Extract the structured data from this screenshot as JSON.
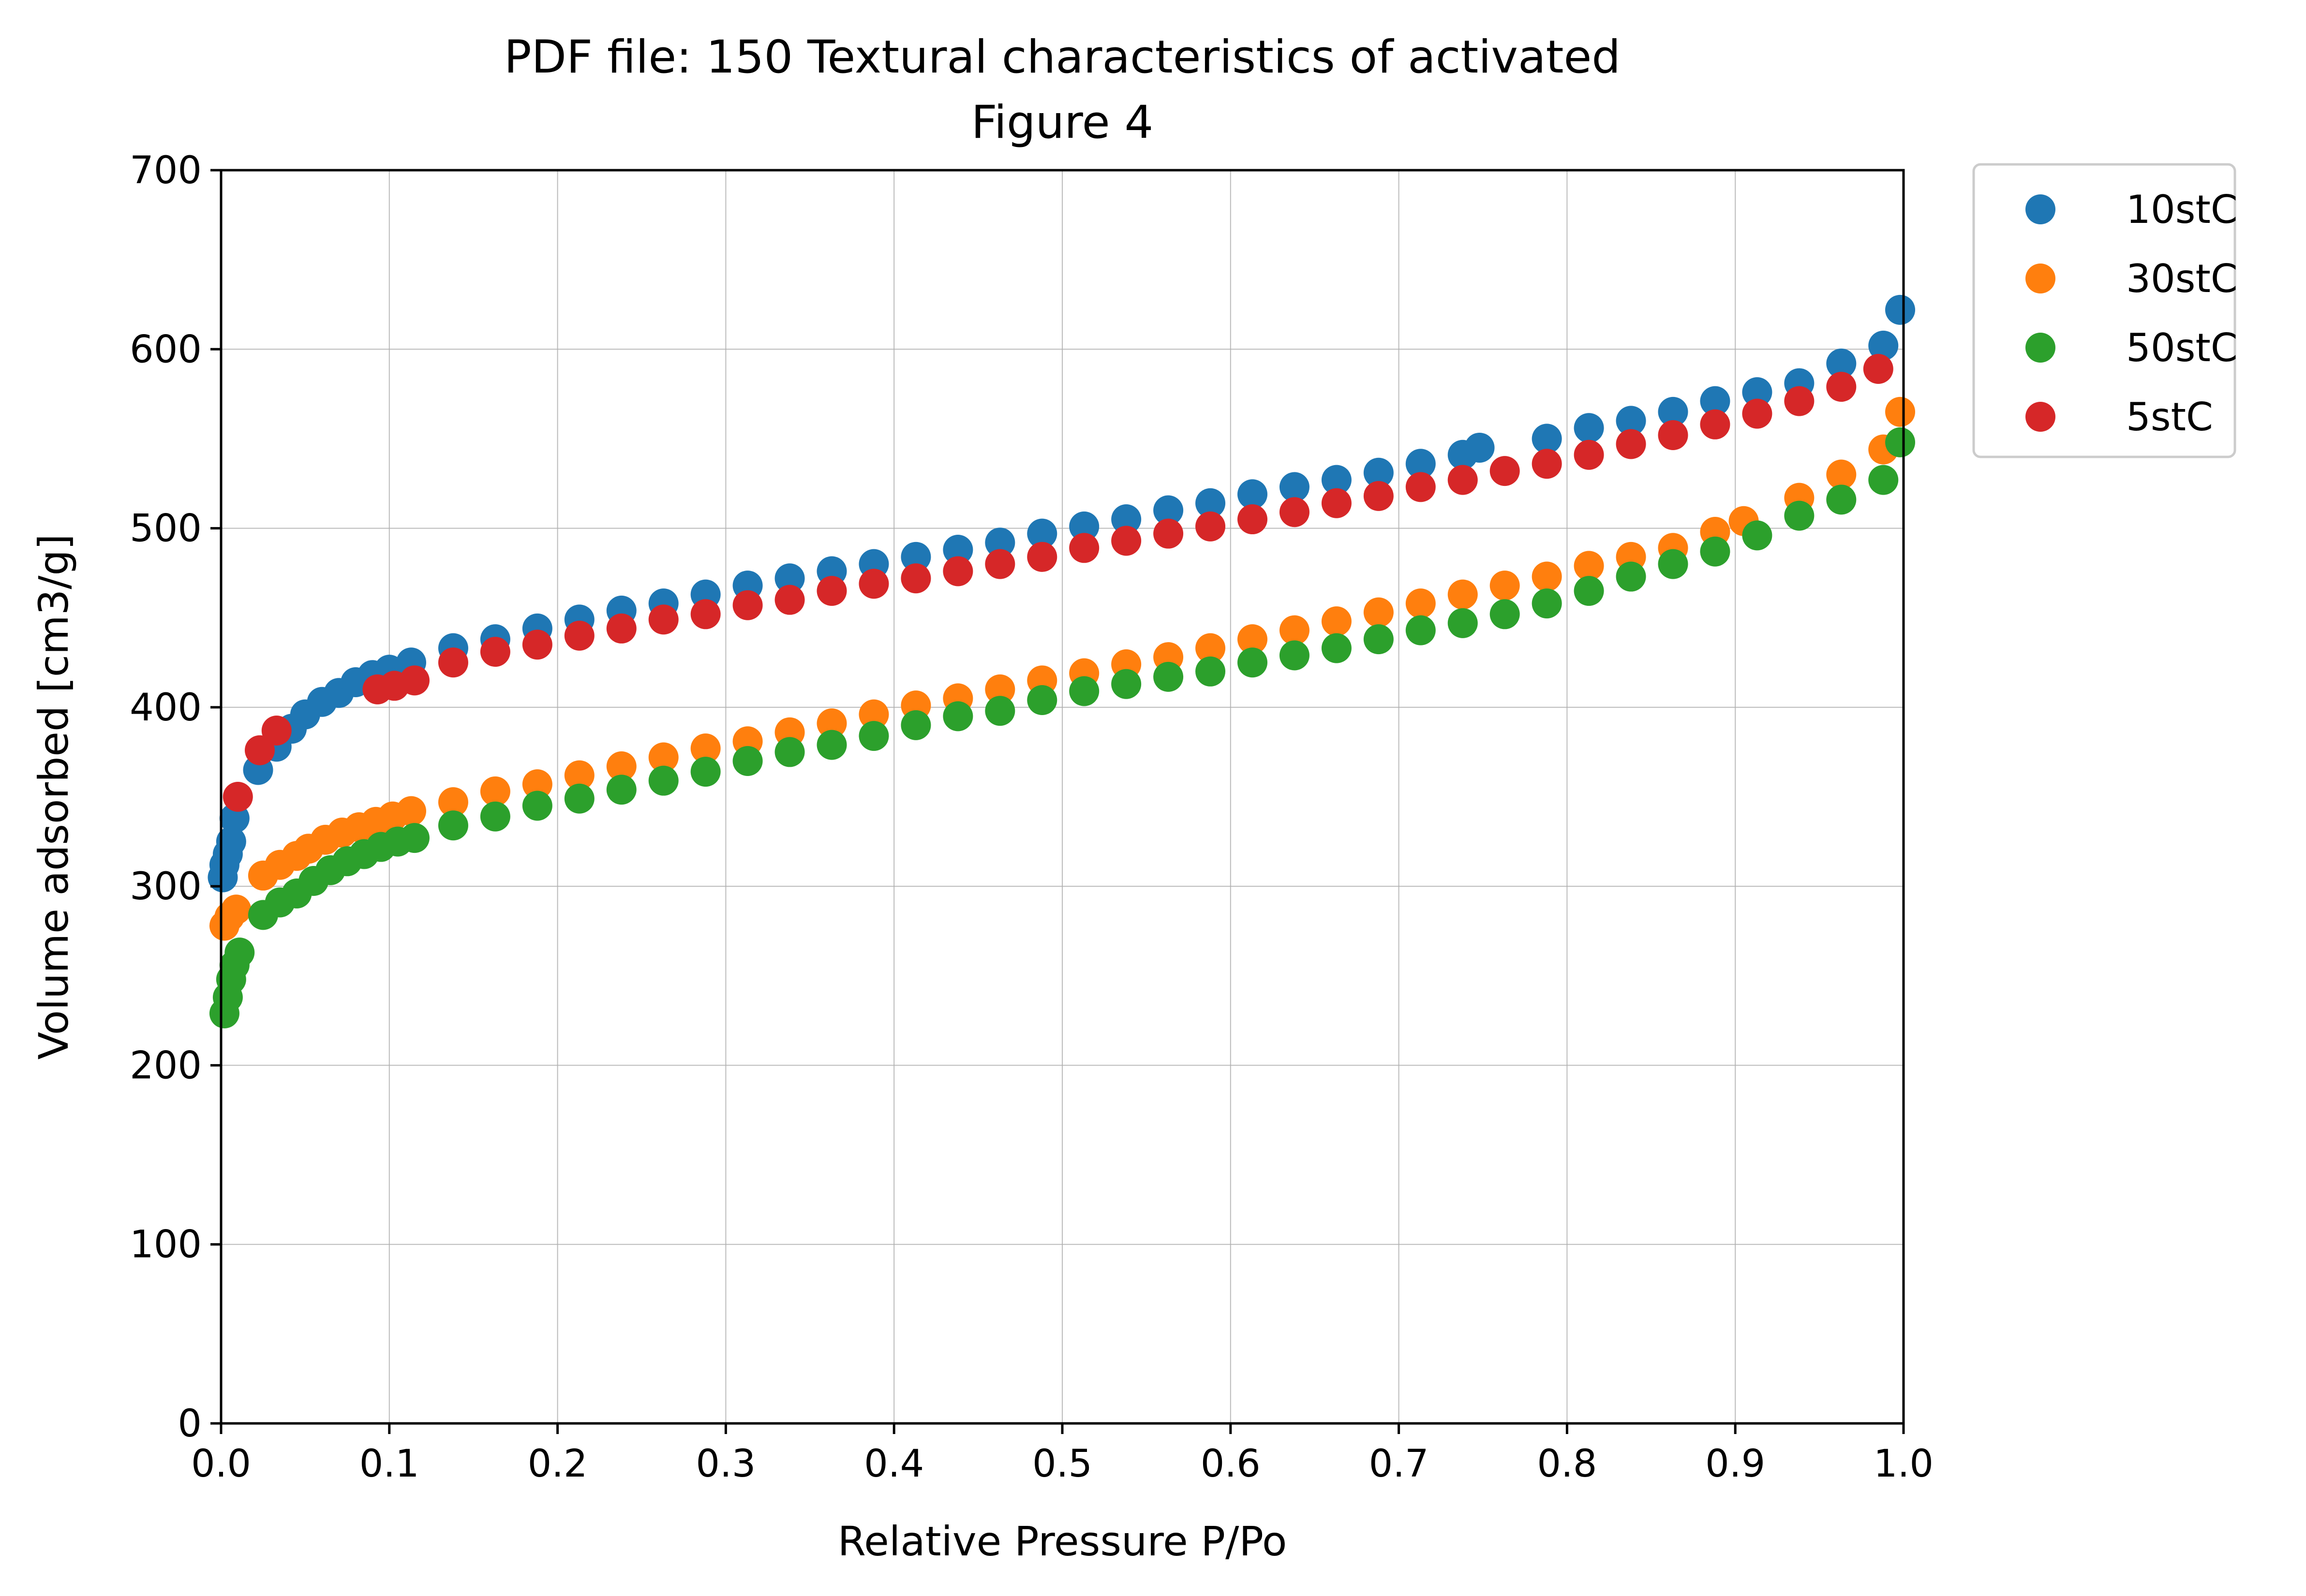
{
  "chart_data": {
    "type": "scatter",
    "title": "PDF file: 150 Textural characteristics of activated",
    "subtitle": "Figure 4",
    "xlabel": "Relative Pressure P/Po",
    "ylabel": "Volume adsorbed [cm3/g]",
    "xlim": [
      0.0,
      1.0
    ],
    "ylim": [
      0,
      700
    ],
    "xticks": [
      "0.0",
      "0.1",
      "0.2",
      "0.3",
      "0.4",
      "0.5",
      "0.6",
      "0.7",
      "0.8",
      "0.9",
      "1.0"
    ],
    "yticks": [
      "0",
      "100",
      "200",
      "300",
      "400",
      "500",
      "600",
      "700"
    ],
    "grid": true,
    "legend_position": "outside-top-right",
    "series": [
      {
        "name": "10stC",
        "color": "#1f77b4",
        "points": [
          [
            0.001,
            305
          ],
          [
            0.002,
            312
          ],
          [
            0.004,
            318
          ],
          [
            0.006,
            325
          ],
          [
            0.008,
            338
          ],
          [
            0.022,
            365
          ],
          [
            0.033,
            378
          ],
          [
            0.042,
            388
          ],
          [
            0.05,
            396
          ],
          [
            0.06,
            403
          ],
          [
            0.07,
            408
          ],
          [
            0.08,
            414
          ],
          [
            0.09,
            418
          ],
          [
            0.1,
            421
          ],
          [
            0.113,
            425
          ],
          [
            0.138,
            433
          ],
          [
            0.163,
            438
          ],
          [
            0.188,
            444
          ],
          [
            0.213,
            449
          ],
          [
            0.238,
            454
          ],
          [
            0.263,
            458
          ],
          [
            0.288,
            463
          ],
          [
            0.313,
            468
          ],
          [
            0.338,
            472
          ],
          [
            0.363,
            476
          ],
          [
            0.388,
            480
          ],
          [
            0.413,
            484
          ],
          [
            0.438,
            488
          ],
          [
            0.463,
            492
          ],
          [
            0.488,
            497
          ],
          [
            0.513,
            501
          ],
          [
            0.538,
            505
          ],
          [
            0.563,
            510
          ],
          [
            0.588,
            514
          ],
          [
            0.613,
            519
          ],
          [
            0.638,
            523
          ],
          [
            0.663,
            527
          ],
          [
            0.688,
            531
          ],
          [
            0.713,
            536
          ],
          [
            0.738,
            541
          ],
          [
            0.748,
            545
          ],
          [
            0.788,
            550
          ],
          [
            0.813,
            556
          ],
          [
            0.838,
            560
          ],
          [
            0.863,
            565
          ],
          [
            0.888,
            571
          ],
          [
            0.913,
            576
          ],
          [
            0.938,
            581
          ],
          [
            0.963,
            592
          ],
          [
            0.988,
            602
          ],
          [
            0.998,
            622
          ]
        ]
      },
      {
        "name": "30stC",
        "color": "#ff7f0e",
        "points": [
          [
            0.002,
            278
          ],
          [
            0.005,
            283
          ],
          [
            0.009,
            287
          ],
          [
            0.025,
            306
          ],
          [
            0.035,
            312
          ],
          [
            0.045,
            317
          ],
          [
            0.052,
            321
          ],
          [
            0.062,
            326
          ],
          [
            0.072,
            330
          ],
          [
            0.082,
            333
          ],
          [
            0.092,
            336
          ],
          [
            0.102,
            339
          ],
          [
            0.113,
            342
          ],
          [
            0.138,
            347
          ],
          [
            0.163,
            353
          ],
          [
            0.188,
            357
          ],
          [
            0.213,
            362
          ],
          [
            0.238,
            367
          ],
          [
            0.263,
            372
          ],
          [
            0.288,
            377
          ],
          [
            0.313,
            381
          ],
          [
            0.338,
            386
          ],
          [
            0.363,
            391
          ],
          [
            0.388,
            396
          ],
          [
            0.413,
            401
          ],
          [
            0.438,
            405
          ],
          [
            0.463,
            410
          ],
          [
            0.488,
            415
          ],
          [
            0.513,
            419
          ],
          [
            0.538,
            424
          ],
          [
            0.563,
            428
          ],
          [
            0.588,
            433
          ],
          [
            0.613,
            438
          ],
          [
            0.638,
            443
          ],
          [
            0.663,
            448
          ],
          [
            0.688,
            453
          ],
          [
            0.713,
            458
          ],
          [
            0.738,
            463
          ],
          [
            0.763,
            468
          ],
          [
            0.788,
            473
          ],
          [
            0.813,
            479
          ],
          [
            0.838,
            484
          ],
          [
            0.863,
            489
          ],
          [
            0.888,
            498
          ],
          [
            0.905,
            504
          ],
          [
            0.938,
            517
          ],
          [
            0.963,
            530
          ],
          [
            0.988,
            544
          ],
          [
            0.998,
            565
          ]
        ]
      },
      {
        "name": "50stC",
        "color": "#2ca02c",
        "points": [
          [
            0.002,
            229
          ],
          [
            0.004,
            238
          ],
          [
            0.006,
            248
          ],
          [
            0.008,
            256
          ],
          [
            0.011,
            263
          ],
          [
            0.025,
            284
          ],
          [
            0.035,
            291
          ],
          [
            0.045,
            296
          ],
          [
            0.055,
            303
          ],
          [
            0.065,
            309
          ],
          [
            0.075,
            314
          ],
          [
            0.085,
            318
          ],
          [
            0.095,
            322
          ],
          [
            0.105,
            325
          ],
          [
            0.115,
            327
          ],
          [
            0.138,
            334
          ],
          [
            0.163,
            339
          ],
          [
            0.188,
            345
          ],
          [
            0.213,
            349
          ],
          [
            0.238,
            354
          ],
          [
            0.263,
            359
          ],
          [
            0.288,
            364
          ],
          [
            0.313,
            370
          ],
          [
            0.338,
            375
          ],
          [
            0.363,
            379
          ],
          [
            0.388,
            384
          ],
          [
            0.413,
            390
          ],
          [
            0.438,
            395
          ],
          [
            0.463,
            398
          ],
          [
            0.488,
            404
          ],
          [
            0.513,
            409
          ],
          [
            0.538,
            413
          ],
          [
            0.563,
            417
          ],
          [
            0.588,
            420
          ],
          [
            0.613,
            425
          ],
          [
            0.638,
            429
          ],
          [
            0.663,
            433
          ],
          [
            0.688,
            438
          ],
          [
            0.713,
            443
          ],
          [
            0.738,
            447
          ],
          [
            0.763,
            452
          ],
          [
            0.788,
            458
          ],
          [
            0.813,
            465
          ],
          [
            0.838,
            473
          ],
          [
            0.863,
            480
          ],
          [
            0.888,
            487
          ],
          [
            0.913,
            496
          ],
          [
            0.938,
            507
          ],
          [
            0.963,
            516
          ],
          [
            0.988,
            527
          ],
          [
            0.998,
            548
          ]
        ]
      },
      {
        "name": "5stC",
        "color": "#d62728",
        "points": [
          [
            0.01,
            350
          ],
          [
            0.023,
            376
          ],
          [
            0.033,
            387
          ],
          [
            0.093,
            410
          ],
          [
            0.103,
            412
          ],
          [
            0.115,
            415
          ],
          [
            0.138,
            425
          ],
          [
            0.163,
            431
          ],
          [
            0.188,
            435
          ],
          [
            0.213,
            440
          ],
          [
            0.238,
            444
          ],
          [
            0.263,
            449
          ],
          [
            0.288,
            452
          ],
          [
            0.313,
            457
          ],
          [
            0.338,
            460
          ],
          [
            0.363,
            465
          ],
          [
            0.388,
            469
          ],
          [
            0.413,
            472
          ],
          [
            0.438,
            476
          ],
          [
            0.463,
            480
          ],
          [
            0.488,
            484
          ],
          [
            0.513,
            489
          ],
          [
            0.538,
            493
          ],
          [
            0.563,
            497
          ],
          [
            0.588,
            501
          ],
          [
            0.613,
            505
          ],
          [
            0.638,
            509
          ],
          [
            0.663,
            514
          ],
          [
            0.688,
            518
          ],
          [
            0.713,
            523
          ],
          [
            0.738,
            527
          ],
          [
            0.763,
            532
          ],
          [
            0.788,
            536
          ],
          [
            0.813,
            541
          ],
          [
            0.838,
            547
          ],
          [
            0.863,
            552
          ],
          [
            0.888,
            558
          ],
          [
            0.913,
            564
          ],
          [
            0.938,
            571
          ],
          [
            0.963,
            579
          ],
          [
            0.985,
            589
          ]
        ]
      }
    ]
  }
}
